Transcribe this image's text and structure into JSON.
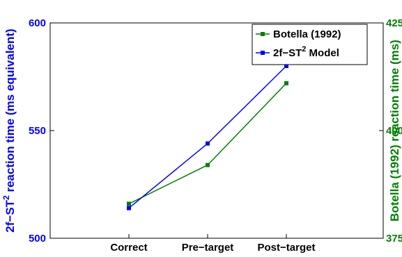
{
  "chart_data": {
    "type": "line",
    "categories": [
      "Correct",
      "Pre−target",
      "Post−target"
    ],
    "left_axis": {
      "label_prefix": "2f−ST",
      "label_sup": "2",
      "label_suffix": " reaction time (ms equivalent)",
      "ylim": [
        500,
        600
      ],
      "ticks": [
        "500",
        "550",
        "600"
      ],
      "color": "#0000ff"
    },
    "right_axis": {
      "label": "Botella (1992) reaction time (ms)",
      "ylim": [
        375,
        425
      ],
      "ticks": [
        "375",
        "400",
        "425"
      ],
      "color": "#008000"
    },
    "series": [
      {
        "name": "Botella (1992)",
        "axis": "right",
        "color": "#008000",
        "values": [
          383,
          392,
          411
        ]
      },
      {
        "name_prefix": "2f−ST",
        "name_sup": "2",
        "name_suffix": " Model",
        "axis": "left",
        "color": "#0000ff",
        "values": [
          514,
          544,
          580
        ]
      }
    ],
    "legend_position": "top-right",
    "grid": false
  }
}
